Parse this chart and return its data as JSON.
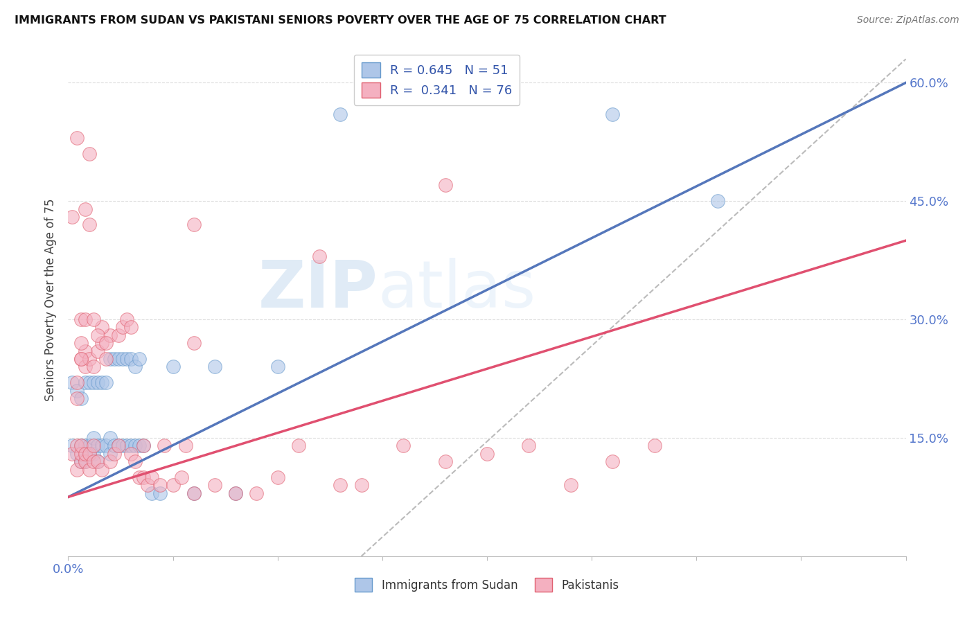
{
  "title": "IMMIGRANTS FROM SUDAN VS PAKISTANI SENIORS POVERTY OVER THE AGE OF 75 CORRELATION CHART",
  "source": "Source: ZipAtlas.com",
  "ylabel": "Seniors Poverty Over the Age of 75",
  "xlim": [
    0.0,
    0.2
  ],
  "ylim": [
    0.0,
    0.65
  ],
  "yticks": [
    0.0,
    0.15,
    0.3,
    0.45,
    0.6
  ],
  "ytick_labels": [
    "",
    "15.0%",
    "30.0%",
    "45.0%",
    "60.0%"
  ],
  "xticks": [
    0.0,
    0.025,
    0.05,
    0.075,
    0.1,
    0.125,
    0.15,
    0.175,
    0.2
  ],
  "xtick_labels_show": {
    "0.0": "0.0%"
  },
  "watermark_zip": "ZIP",
  "watermark_atlas": "atlas",
  "blue_scatter_x": [
    0.001,
    0.001,
    0.002,
    0.002,
    0.003,
    0.003,
    0.003,
    0.004,
    0.004,
    0.004,
    0.005,
    0.005,
    0.005,
    0.006,
    0.006,
    0.006,
    0.007,
    0.007,
    0.007,
    0.008,
    0.008,
    0.009,
    0.009,
    0.01,
    0.01,
    0.01,
    0.011,
    0.011,
    0.012,
    0.012,
    0.013,
    0.013,
    0.014,
    0.014,
    0.015,
    0.015,
    0.016,
    0.016,
    0.017,
    0.017,
    0.018,
    0.02,
    0.022,
    0.025,
    0.03,
    0.035,
    0.04,
    0.05,
    0.065,
    0.13,
    0.155
  ],
  "blue_scatter_y": [
    0.14,
    0.22,
    0.13,
    0.21,
    0.12,
    0.14,
    0.2,
    0.12,
    0.14,
    0.22,
    0.13,
    0.14,
    0.22,
    0.13,
    0.15,
    0.22,
    0.12,
    0.14,
    0.22,
    0.14,
    0.22,
    0.14,
    0.22,
    0.13,
    0.15,
    0.25,
    0.14,
    0.25,
    0.14,
    0.25,
    0.14,
    0.25,
    0.14,
    0.25,
    0.14,
    0.25,
    0.14,
    0.24,
    0.14,
    0.25,
    0.14,
    0.08,
    0.08,
    0.24,
    0.08,
    0.24,
    0.08,
    0.24,
    0.56,
    0.56,
    0.45
  ],
  "pink_scatter_x": [
    0.001,
    0.002,
    0.002,
    0.002,
    0.003,
    0.003,
    0.003,
    0.003,
    0.004,
    0.004,
    0.004,
    0.004,
    0.005,
    0.005,
    0.005,
    0.006,
    0.006,
    0.006,
    0.007,
    0.007,
    0.008,
    0.008,
    0.009,
    0.01,
    0.01,
    0.011,
    0.012,
    0.012,
    0.013,
    0.014,
    0.015,
    0.015,
    0.016,
    0.017,
    0.018,
    0.018,
    0.019,
    0.02,
    0.022,
    0.023,
    0.025,
    0.027,
    0.028,
    0.03,
    0.03,
    0.035,
    0.04,
    0.045,
    0.05,
    0.055,
    0.06,
    0.065,
    0.07,
    0.08,
    0.09,
    0.1,
    0.11,
    0.12,
    0.13,
    0.14,
    0.004,
    0.005,
    0.005,
    0.008,
    0.003,
    0.004,
    0.03,
    0.09,
    0.006,
    0.007,
    0.009,
    0.003,
    0.002,
    0.002,
    0.001,
    0.003
  ],
  "pink_scatter_y": [
    0.13,
    0.11,
    0.14,
    0.22,
    0.12,
    0.13,
    0.14,
    0.25,
    0.12,
    0.13,
    0.24,
    0.26,
    0.11,
    0.13,
    0.25,
    0.12,
    0.14,
    0.24,
    0.12,
    0.26,
    0.11,
    0.27,
    0.25,
    0.12,
    0.28,
    0.13,
    0.14,
    0.28,
    0.29,
    0.3,
    0.13,
    0.29,
    0.12,
    0.1,
    0.1,
    0.14,
    0.09,
    0.1,
    0.09,
    0.14,
    0.09,
    0.1,
    0.14,
    0.08,
    0.27,
    0.09,
    0.08,
    0.08,
    0.1,
    0.14,
    0.38,
    0.09,
    0.09,
    0.14,
    0.12,
    0.13,
    0.14,
    0.09,
    0.12,
    0.14,
    0.44,
    0.51,
    0.42,
    0.29,
    0.3,
    0.3,
    0.42,
    0.47,
    0.3,
    0.28,
    0.27,
    0.27,
    0.2,
    0.53,
    0.43,
    0.25
  ],
  "blue_line": {
    "x0": 0.0,
    "y0": 0.075,
    "x1": 0.2,
    "y1": 0.6
  },
  "pink_line": {
    "x0": 0.0,
    "y0": 0.075,
    "x1": 0.2,
    "y1": 0.4
  },
  "dash_line": {
    "x0": 0.07,
    "y0": 0.0,
    "x1": 0.2,
    "y1": 0.63
  },
  "blue_color": "#aec6e8",
  "blue_edge": "#6699cc",
  "pink_color": "#f4b0c0",
  "pink_edge": "#e06070",
  "blue_line_color": "#5577bb",
  "pink_line_color": "#e05070",
  "dash_color": "#bbbbbb",
  "background_color": "#ffffff",
  "grid_color": "#dddddd",
  "ytick_label_color": "#5577cc",
  "xtick_label_color": "#5577cc"
}
